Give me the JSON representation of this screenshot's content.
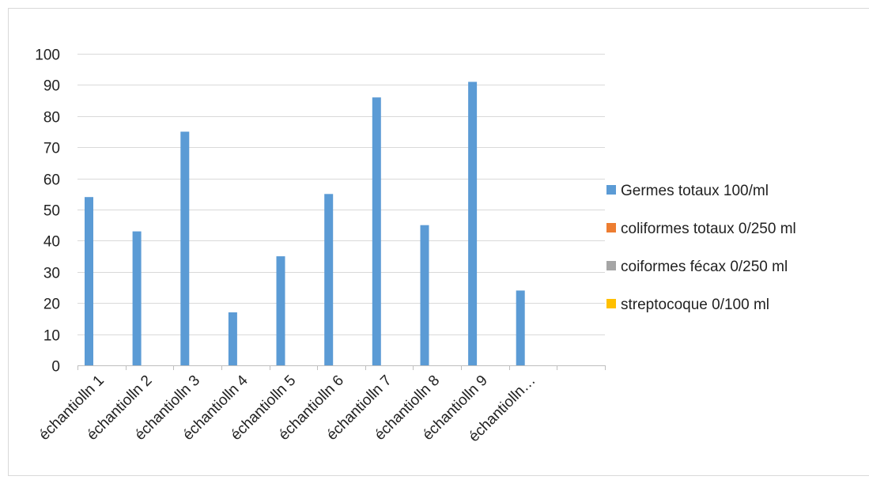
{
  "chart_data": {
    "type": "bar",
    "title": "",
    "xlabel": "",
    "ylabel": "",
    "ylim": [
      0,
      100
    ],
    "yticks": [
      0,
      10,
      20,
      30,
      40,
      50,
      60,
      70,
      80,
      90,
      100
    ],
    "grid": true,
    "legend_position": "right",
    "categories": [
      "échantiolln 1",
      "échantiolln 2",
      "échantiolln 3",
      "échantiolln 4",
      "échantiolln 5",
      "échantiolln 6",
      "échantiolln 7",
      "échantiolln 8",
      "échantiolln 9",
      "échantiolln…",
      ""
    ],
    "series": [
      {
        "name": "Germes totaux 100/ml",
        "color": "#5b9bd5",
        "values": [
          54,
          43,
          75,
          17,
          35,
          55,
          86,
          45,
          91,
          24,
          null
        ]
      },
      {
        "name": "coliformes totaux 0/250 ml",
        "color": "#ed7d31",
        "values": [
          0,
          0,
          0,
          0,
          0,
          0,
          0,
          0,
          0,
          0,
          null
        ]
      },
      {
        "name": "coiformes fécax 0/250 ml",
        "color": "#a5a5a5",
        "values": [
          0,
          0,
          0,
          0,
          0,
          0,
          0,
          0,
          0,
          0,
          null
        ]
      },
      {
        "name": "streptocoque 0/100 ml",
        "color": "#ffc000",
        "values": [
          0,
          0,
          0,
          0,
          0,
          0,
          0,
          0,
          0,
          0,
          null
        ]
      }
    ]
  }
}
